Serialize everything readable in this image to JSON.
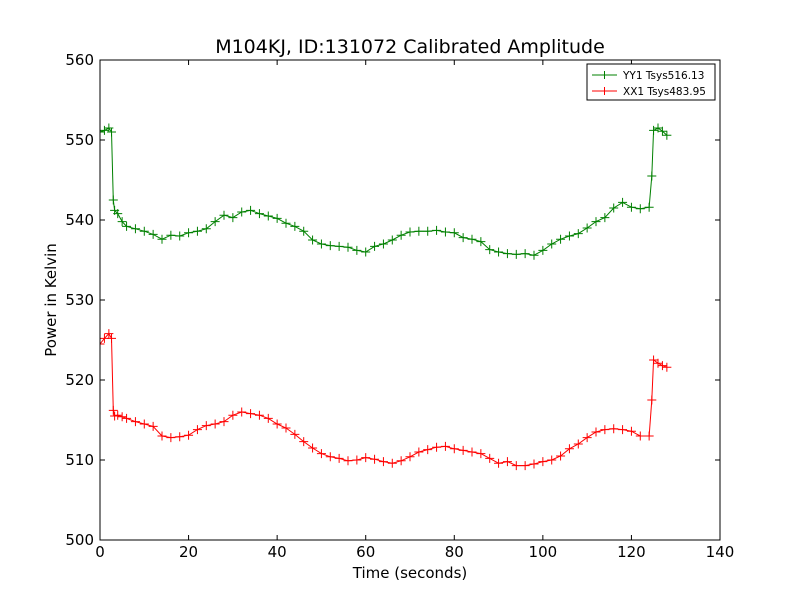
{
  "chart_data": {
    "type": "line",
    "title": "M104KJ, ID:131072 Calibrated Amplitude",
    "xlabel": "Time (seconds)",
    "ylabel": "Power in Kelvin",
    "xlim": [
      0,
      140
    ],
    "ylim": [
      500,
      560
    ],
    "xticks": [
      0,
      20,
      40,
      60,
      80,
      100,
      120,
      140
    ],
    "yticks": [
      500,
      510,
      520,
      530,
      540,
      550,
      560
    ],
    "grid": false,
    "legend": "top-right",
    "marker": "plus",
    "series": [
      {
        "name": "YY1 Tsys516.13",
        "color": "#008000",
        "x": [
          0,
          1,
          2,
          2.6,
          3,
          3.3,
          4,
          5,
          6,
          8,
          10,
          12,
          14,
          16,
          18,
          20,
          22,
          24,
          26,
          28,
          30,
          32,
          34,
          36,
          38,
          40,
          42,
          44,
          46,
          48,
          50,
          52,
          54,
          56,
          58,
          60,
          62,
          64,
          66,
          68,
          70,
          72,
          74,
          76,
          78,
          80,
          82,
          84,
          86,
          88,
          90,
          92,
          94,
          96,
          98,
          100,
          102,
          104,
          106,
          108,
          110,
          112,
          114,
          116,
          118,
          120,
          122,
          124,
          124.6,
          125,
          126,
          127,
          128
        ],
        "y": [
          551,
          551.2,
          551.5,
          551,
          542.5,
          541.2,
          540.8,
          539.8,
          539.2,
          538.9,
          538.6,
          538.2,
          537.6,
          538.1,
          538.0,
          538.4,
          538.6,
          538.9,
          539.8,
          540.6,
          540.3,
          541.0,
          541.2,
          540.8,
          540.5,
          540.2,
          539.6,
          539.2,
          538.6,
          537.5,
          537.0,
          536.8,
          536.7,
          536.6,
          536.2,
          536.0,
          536.7,
          537.0,
          537.5,
          538.1,
          538.5,
          538.6,
          538.6,
          538.7,
          538.5,
          538.4,
          537.8,
          537.6,
          537.3,
          536.3,
          536.0,
          535.8,
          535.7,
          535.8,
          535.6,
          536.2,
          537.0,
          537.6,
          538.0,
          538.3,
          539.0,
          539.8,
          540.3,
          541.5,
          542.2,
          541.6,
          541.4,
          541.6,
          545.5,
          551.2,
          551.5,
          551.1,
          550.6
        ]
      },
      {
        "name": "XX1 Tsys483.95",
        "color": "#ff0000",
        "x": [
          0,
          1,
          2,
          2.6,
          3,
          3.3,
          4,
          5,
          6,
          8,
          10,
          12,
          14,
          16,
          18,
          20,
          22,
          24,
          26,
          28,
          30,
          32,
          34,
          36,
          38,
          40,
          42,
          44,
          46,
          48,
          50,
          52,
          54,
          56,
          58,
          60,
          62,
          64,
          66,
          68,
          70,
          72,
          74,
          76,
          78,
          80,
          82,
          84,
          86,
          88,
          90,
          92,
          94,
          96,
          98,
          100,
          102,
          104,
          106,
          108,
          110,
          112,
          114,
          116,
          118,
          120,
          122,
          124,
          124.6,
          125,
          126,
          127,
          128
        ],
        "y": [
          524.5,
          525.2,
          525.8,
          525.2,
          516.2,
          515.5,
          515.6,
          515.4,
          515.2,
          514.8,
          514.5,
          514.2,
          513.0,
          512.8,
          512.9,
          513.1,
          513.8,
          514.3,
          514.5,
          514.8,
          515.6,
          516.0,
          515.8,
          515.6,
          515.2,
          514.5,
          514.0,
          513.2,
          512.3,
          511.5,
          510.8,
          510.4,
          510.2,
          509.9,
          510.0,
          510.3,
          510.1,
          509.8,
          509.6,
          509.9,
          510.4,
          511.0,
          511.3,
          511.6,
          511.7,
          511.4,
          511.2,
          511.0,
          510.8,
          510.2,
          509.6,
          509.8,
          509.3,
          509.3,
          509.5,
          509.8,
          510.0,
          510.5,
          511.4,
          512.0,
          512.8,
          513.5,
          513.8,
          513.9,
          513.8,
          513.6,
          513.0,
          513.0,
          517.5,
          522.5,
          522.1,
          521.8,
          521.6
        ]
      }
    ]
  }
}
